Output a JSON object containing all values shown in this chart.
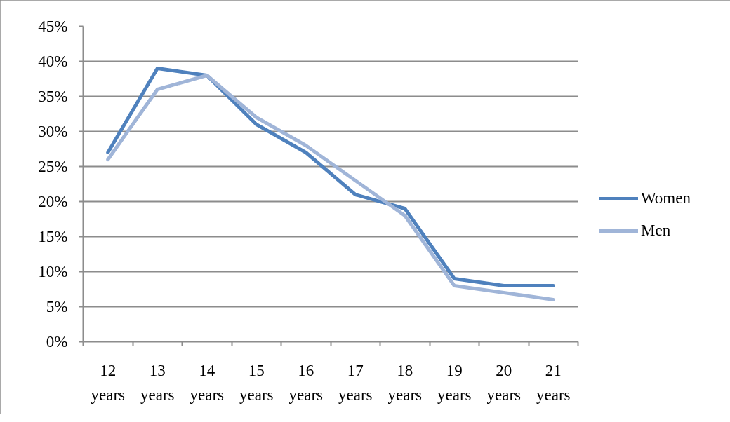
{
  "chart_data": {
    "type": "line",
    "categories": [
      "12 years",
      "13 years",
      "14 years",
      "15 years",
      "16 years",
      "17 years",
      "18 years",
      "19 years",
      "20 years",
      "21 years"
    ],
    "series": [
      {
        "name": "Women",
        "color": "#4f81bd",
        "values": [
          27,
          39,
          38,
          31,
          27,
          21,
          19,
          9,
          8,
          8
        ]
      },
      {
        "name": "Men",
        "color": "#a0b5d8",
        "values": [
          26,
          36,
          38,
          32,
          28,
          23,
          18,
          8,
          7,
          6
        ]
      }
    ],
    "ylim": [
      0,
      45
    ],
    "yticks": [
      {
        "value": 0,
        "label": "0%"
      },
      {
        "value": 5,
        "label": "5%"
      },
      {
        "value": 10,
        "label": "10%"
      },
      {
        "value": 15,
        "label": "15%"
      },
      {
        "value": 20,
        "label": "20%"
      },
      {
        "value": 25,
        "label": "25%"
      },
      {
        "value": 30,
        "label": "30%"
      },
      {
        "value": 35,
        "label": "35%"
      },
      {
        "value": 40,
        "label": "40%"
      },
      {
        "value": 45,
        "label": "45%"
      }
    ],
    "grid": "y",
    "legend": "right",
    "line_style": "solid"
  }
}
